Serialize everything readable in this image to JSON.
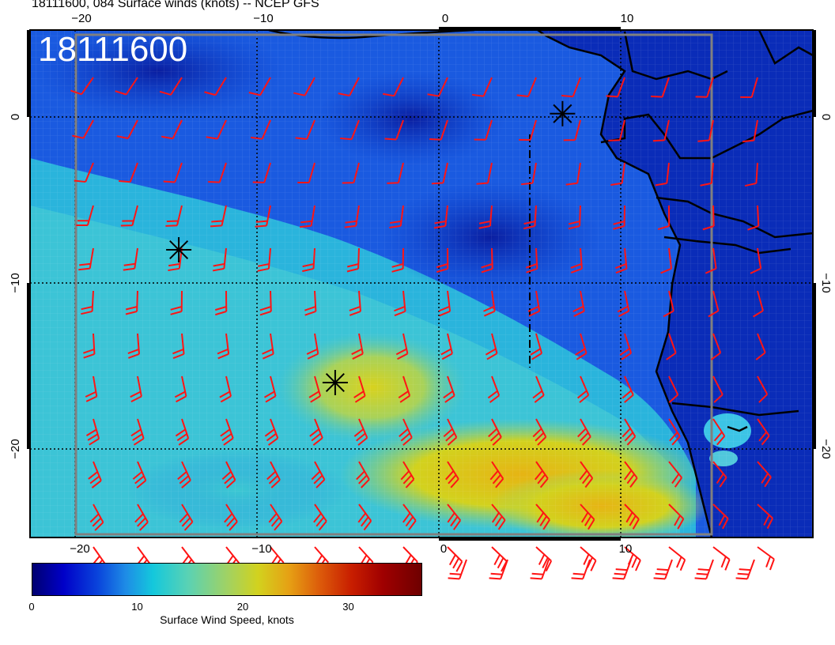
{
  "title": "18111600, 084 Surface winds (knots) -- NCEP GFS",
  "stamp": "18111600",
  "colorbar": {
    "label": "Surface Wind Speed, knots",
    "ticks": [
      {
        "value": 0,
        "label": "0"
      },
      {
        "value": 10,
        "label": "10"
      },
      {
        "value": 20,
        "label": "20"
      },
      {
        "value": 30,
        "label": "30"
      }
    ],
    "max": 37
  },
  "axes": {
    "lon_ticks": [
      {
        "value": -20,
        "label": "−20"
      },
      {
        "value": -10,
        "label": "−10"
      },
      {
        "value": 0,
        "label": "0"
      },
      {
        "value": 10,
        "label": "10"
      }
    ],
    "lat_ticks": [
      {
        "value": 0,
        "label": "0"
      },
      {
        "value": -10,
        "label": "−10"
      },
      {
        "value": -20,
        "label": "−20"
      }
    ],
    "lon_range": [
      -22.5,
      20.5
    ],
    "lat_range": [
      -25.5,
      5
    ]
  },
  "markers": [
    {
      "name": "marker-1",
      "lon": -14.3,
      "lat": -8
    },
    {
      "name": "marker-2",
      "lon": -5.7,
      "lat": -16
    },
    {
      "name": "marker-3",
      "lon": 6.8,
      "lat": 0.2
    }
  ],
  "colors": {
    "barb": "#ff1414",
    "ocean_deep": "#0a2ec8",
    "ocean_mid": "#1e64e6",
    "ocean_light": "#2ab4dc",
    "wind_high": "#d2d21e",
    "wind_max": "#e6b414",
    "land": "#0a28b4",
    "coast": "#000000"
  }
}
